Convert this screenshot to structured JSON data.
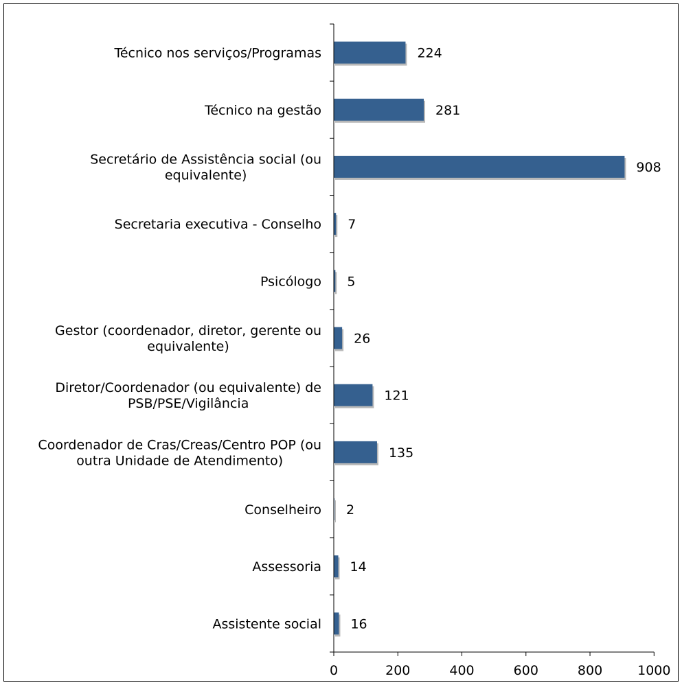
{
  "chart_data": {
    "type": "bar",
    "orientation": "horizontal",
    "title": "",
    "xlabel": "",
    "ylabel": "",
    "xlim": [
      0,
      1000
    ],
    "x_ticks": [
      "0",
      "200",
      "400",
      "600",
      "800",
      "1000"
    ],
    "grid": false,
    "categories": [
      [
        "Técnico nos serviços/Programas"
      ],
      [
        "Técnico na gestão"
      ],
      [
        "Secretário de Assistência social (ou",
        "equivalente)"
      ],
      [
        "Secretaria executiva - Conselho"
      ],
      [
        "Psicólogo"
      ],
      [
        "Gestor (coordenador, diretor, gerente ou",
        "equivalente)"
      ],
      [
        "Diretor/Coordenador (ou equivalente) de",
        "PSB/PSE/Vigilância"
      ],
      [
        "Coordenador de Cras/Creas/Centro POP (ou",
        "outra Unidade de Atendimento)"
      ],
      [
        "Conselheiro"
      ],
      [
        "Assessoria"
      ],
      [
        "Assistente social"
      ]
    ],
    "values": [
      224,
      281,
      908,
      7,
      5,
      26,
      121,
      135,
      2,
      14,
      16
    ],
    "value_labels": [
      "224",
      "281",
      "908",
      "7",
      "5",
      "26",
      "121",
      "135",
      "2",
      "14",
      "16"
    ],
    "bar_color": "#35608F",
    "bar_shadow_color": "#B8B8B8",
    "axis_color": "#000000"
  }
}
